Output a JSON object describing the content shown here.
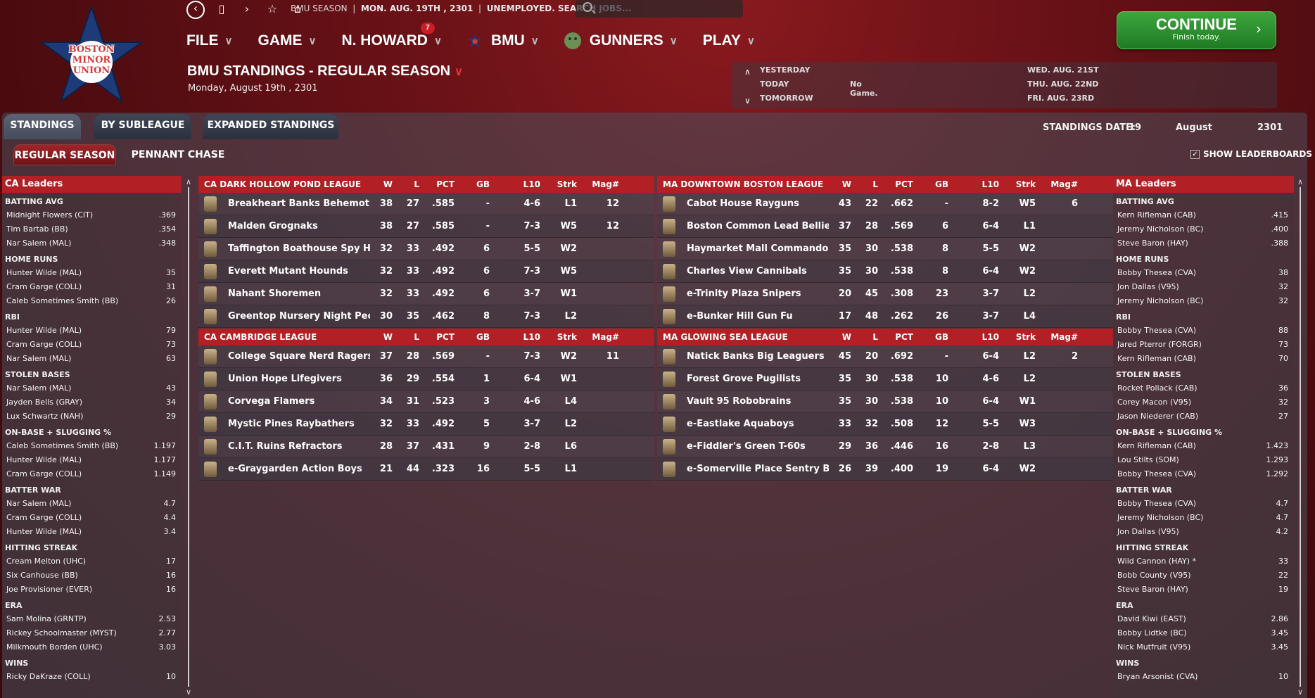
{
  "app": {
    "logo_lines": [
      "BOSTON",
      "MINOR",
      "UNION"
    ],
    "status_season": "BMU SEASON",
    "status_date": "MON. AUG. 19TH , 2301",
    "status_job": "UNEMPLOYED. SEARCH JOBS..."
  },
  "menu": {
    "file": "FILE",
    "game": "GAME",
    "manager": "N. HOWARD",
    "manager_badge": "7",
    "league": "BMU",
    "team": "GUNNERS",
    "play": "PLAY"
  },
  "continue": {
    "label": "CONTINUE",
    "sub": "Finish today."
  },
  "page": {
    "title": "BMU STANDINGS - REGULAR SEASON",
    "date": "Monday, August 19th , 2301"
  },
  "schedule": {
    "yesterday_label": "YESTERDAY",
    "today_label": "TODAY",
    "today_game": "No Game.",
    "tomorrow_label": "TOMORROW",
    "day1": "WED. AUG. 21ST",
    "day2": "THU. AUG. 22ND",
    "day3": "FRI. AUG. 23RD"
  },
  "tabs": {
    "standings": "STANDINGS",
    "by_subleague": "BY SUBLEAGUE",
    "expanded": "EXPANDED STANDINGS",
    "regular_season": "REGULAR SEASON",
    "pennant_chase": "PENNANT CHASE"
  },
  "standings_date": {
    "label": "STANDINGS DATE:",
    "day": "19",
    "month": "August",
    "year": "2301"
  },
  "show_leaderboards": "SHOW LEADERBOARDS",
  "columns": {
    "w": "W",
    "l": "L",
    "pct": "PCT",
    "gb": "GB",
    "l10": "L10",
    "strk": "Strk",
    "mag": "Mag#"
  },
  "divisions": [
    {
      "name": "CA DARK HOLLOW POND LEAGUE",
      "teams": [
        {
          "name": "Breakheart Banks Behemoths",
          "w": "38",
          "l": "27",
          "pct": ".585",
          "gb": "-",
          "l10": "4-6",
          "strk": "L1",
          "mag": "12"
        },
        {
          "name": "Malden Grognaks",
          "w": "38",
          "l": "27",
          "pct": ".585",
          "gb": "-",
          "l10": "7-3",
          "strk": "W5",
          "mag": "12"
        },
        {
          "name": "Taffington Boathouse Spy Hunter",
          "w": "32",
          "l": "33",
          "pct": ".492",
          "gb": "6",
          "l10": "5-5",
          "strk": "W2",
          "mag": ""
        },
        {
          "name": "Everett Mutant Hounds",
          "w": "32",
          "l": "33",
          "pct": ".492",
          "gb": "6",
          "l10": "7-3",
          "strk": "W5",
          "mag": ""
        },
        {
          "name": "Nahant Shoremen",
          "w": "32",
          "l": "33",
          "pct": ".492",
          "gb": "6",
          "l10": "3-7",
          "strk": "W1",
          "mag": ""
        },
        {
          "name": "Greentop Nursery Night People",
          "w": "30",
          "l": "35",
          "pct": ".462",
          "gb": "8",
          "l10": "7-3",
          "strk": "L2",
          "mag": ""
        }
      ]
    },
    {
      "name": "CA CAMBRIDGE LEAGUE",
      "teams": [
        {
          "name": "College Square Nerd Ragers",
          "w": "37",
          "l": "28",
          "pct": ".569",
          "gb": "-",
          "l10": "7-3",
          "strk": "W2",
          "mag": "11"
        },
        {
          "name": "Union Hope Lifegivers",
          "w": "36",
          "l": "29",
          "pct": ".554",
          "gb": "1",
          "l10": "6-4",
          "strk": "W1",
          "mag": ""
        },
        {
          "name": "Corvega Flamers",
          "w": "34",
          "l": "31",
          "pct": ".523",
          "gb": "3",
          "l10": "4-6",
          "strk": "L4",
          "mag": ""
        },
        {
          "name": "Mystic Pines Raybathers",
          "w": "32",
          "l": "33",
          "pct": ".492",
          "gb": "5",
          "l10": "3-7",
          "strk": "L2",
          "mag": ""
        },
        {
          "name": "C.I.T. Ruins Refractors",
          "w": "28",
          "l": "37",
          "pct": ".431",
          "gb": "9",
          "l10": "2-8",
          "strk": "L6",
          "mag": ""
        },
        {
          "name": "e-Graygarden Action Boys",
          "w": "21",
          "l": "44",
          "pct": ".323",
          "gb": "16",
          "l10": "5-5",
          "strk": "L1",
          "mag": ""
        }
      ]
    },
    {
      "name": "MA DOWNTOWN BOSTON LEAGUE",
      "teams": [
        {
          "name": "Cabot House Rayguns",
          "w": "43",
          "l": "22",
          "pct": ".662",
          "gb": "-",
          "l10": "8-2",
          "strk": "W5",
          "mag": "6"
        },
        {
          "name": "Boston Common Lead Bellies",
          "w": "37",
          "l": "28",
          "pct": ".569",
          "gb": "6",
          "l10": "6-4",
          "strk": "L1",
          "mag": ""
        },
        {
          "name": "Haymarket Mall Commandos",
          "w": "35",
          "l": "30",
          "pct": ".538",
          "gb": "8",
          "l10": "5-5",
          "strk": "W2",
          "mag": ""
        },
        {
          "name": "Charles View Cannibals",
          "w": "35",
          "l": "30",
          "pct": ".538",
          "gb": "8",
          "l10": "6-4",
          "strk": "W2",
          "mag": ""
        },
        {
          "name": "e-Trinity Plaza Snipers",
          "w": "20",
          "l": "45",
          "pct": ".308",
          "gb": "23",
          "l10": "3-7",
          "strk": "L2",
          "mag": ""
        },
        {
          "name": "e-Bunker Hill Gun Fu",
          "w": "17",
          "l": "48",
          "pct": ".262",
          "gb": "26",
          "l10": "3-7",
          "strk": "L4",
          "mag": ""
        }
      ]
    },
    {
      "name": "MA GLOWING SEA LEAGUE",
      "teams": [
        {
          "name": "Natick Banks Big Leaguers",
          "w": "45",
          "l": "20",
          "pct": ".692",
          "gb": "-",
          "l10": "6-4",
          "strk": "L2",
          "mag": "2"
        },
        {
          "name": "Forest Grove Pugilists",
          "w": "35",
          "l": "30",
          "pct": ".538",
          "gb": "10",
          "l10": "4-6",
          "strk": "L2",
          "mag": ""
        },
        {
          "name": "Vault 95 Robobrains",
          "w": "35",
          "l": "30",
          "pct": ".538",
          "gb": "10",
          "l10": "6-4",
          "strk": "W1",
          "mag": ""
        },
        {
          "name": "e-Eastlake Aquaboys",
          "w": "33",
          "l": "32",
          "pct": ".508",
          "gb": "12",
          "l10": "5-5",
          "strk": "W3",
          "mag": ""
        },
        {
          "name": "e-Fiddler's Green T-60s",
          "w": "29",
          "l": "36",
          "pct": ".446",
          "gb": "16",
          "l10": "2-8",
          "strk": "L3",
          "mag": ""
        },
        {
          "name": "e-Somerville Place Sentry Bots",
          "w": "26",
          "l": "39",
          "pct": ".400",
          "gb": "19",
          "l10": "6-4",
          "strk": "W2",
          "mag": ""
        }
      ]
    }
  ],
  "leaders_ca": {
    "title": "CA Leaders",
    "categories": [
      {
        "name": "BATTING AVG",
        "rows": [
          [
            "Midnight Flowers (CIT)",
            ".369"
          ],
          [
            "Tim Bartab (BB)",
            ".354"
          ],
          [
            "Nar Salem (MAL)",
            ".348"
          ]
        ]
      },
      {
        "name": "HOME RUNS",
        "rows": [
          [
            "Hunter Wilde (MAL)",
            "35"
          ],
          [
            "Cram Garge (COLL)",
            "31"
          ],
          [
            "Caleb Sometimes Smith (BB)",
            "26"
          ]
        ]
      },
      {
        "name": "RBI",
        "rows": [
          [
            "Hunter Wilde (MAL)",
            "79"
          ],
          [
            "Cram Garge (COLL)",
            "73"
          ],
          [
            "Nar Salem (MAL)",
            "63"
          ]
        ]
      },
      {
        "name": "STOLEN BASES",
        "rows": [
          [
            "Nar Salem (MAL)",
            "43"
          ],
          [
            "Jayden Bells (GRAY)",
            "34"
          ],
          [
            "Lux Schwartz (NAH)",
            "29"
          ]
        ]
      },
      {
        "name": "ON-BASE + SLUGGING %",
        "rows": [
          [
            "Caleb Sometimes Smith (BB)",
            "1.197"
          ],
          [
            "Hunter Wilde (MAL)",
            "1.177"
          ],
          [
            "Cram Garge (COLL)",
            "1.149"
          ]
        ]
      },
      {
        "name": "BATTER WAR",
        "rows": [
          [
            "Nar Salem (MAL)",
            "4.7"
          ],
          [
            "Cram Garge (COLL)",
            "4.4"
          ],
          [
            "Hunter Wilde (MAL)",
            "3.4"
          ]
        ]
      },
      {
        "name": "HITTING STREAK",
        "rows": [
          [
            "Cream Melton (UHC)",
            "17"
          ],
          [
            "Six Canhouse (BB)",
            "16"
          ],
          [
            "Joe Provisioner (EVER)",
            "16"
          ]
        ]
      },
      {
        "name": "ERA",
        "rows": [
          [
            "Sam Molina (GRNTP)",
            "2.53"
          ],
          [
            "Rickey Schoolmaster (MYST)",
            "2.77"
          ],
          [
            "Milkmouth Borden (UHC)",
            "3.03"
          ]
        ]
      },
      {
        "name": "WINS",
        "rows": [
          [
            "Ricky DaKraze (COLL)",
            "10"
          ]
        ]
      }
    ]
  },
  "leaders_ma": {
    "title": "MA Leaders",
    "categories": [
      {
        "name": "BATTING AVG",
        "rows": [
          [
            "Kern Rifleman (CAB)",
            ".415"
          ],
          [
            "Jeremy Nicholson (BC)",
            ".400"
          ],
          [
            "Steve Baron (HAY)",
            ".388"
          ]
        ]
      },
      {
        "name": "HOME RUNS",
        "rows": [
          [
            "Bobby Thesea (CVA)",
            "38"
          ],
          [
            "Jon Dallas (V95)",
            "32"
          ],
          [
            "Jeremy Nicholson (BC)",
            "32"
          ]
        ]
      },
      {
        "name": "RBI",
        "rows": [
          [
            "Bobby Thesea (CVA)",
            "88"
          ],
          [
            "Jared Pterror (FORGR)",
            "73"
          ],
          [
            "Kern Rifleman (CAB)",
            "70"
          ]
        ]
      },
      {
        "name": "STOLEN BASES",
        "rows": [
          [
            "Rocket Pollack (CAB)",
            "36"
          ],
          [
            "Corey Macon (V95)",
            "32"
          ],
          [
            "Jason Niederer (CAB)",
            "27"
          ]
        ]
      },
      {
        "name": "ON-BASE + SLUGGING %",
        "rows": [
          [
            "Kern Rifleman (CAB)",
            "1.423"
          ],
          [
            "Lou Stilts (SOM)",
            "1.293"
          ],
          [
            "Bobby Thesea (CVA)",
            "1.292"
          ]
        ]
      },
      {
        "name": "BATTER WAR",
        "rows": [
          [
            "Bobby Thesea (CVA)",
            "4.7"
          ],
          [
            "Jeremy Nicholson (BC)",
            "4.7"
          ],
          [
            "Jon Dallas (V95)",
            "4.2"
          ]
        ]
      },
      {
        "name": "HITTING STREAK",
        "rows": [
          [
            "Wild Cannon (HAY) *",
            "33"
          ],
          [
            "Bobb County (V95)",
            "22"
          ],
          [
            "Steve Baron (HAY)",
            "19"
          ]
        ]
      },
      {
        "name": "ERA",
        "rows": [
          [
            "David Kiwi (EAST)",
            "2.86"
          ],
          [
            "Bobby Lidtke (BC)",
            "3.45"
          ],
          [
            "Nick Mutfruit (V95)",
            "3.45"
          ]
        ]
      },
      {
        "name": "WINS",
        "rows": [
          [
            "Bryan Arsonist (CVA)",
            "10"
          ]
        ]
      }
    ]
  }
}
